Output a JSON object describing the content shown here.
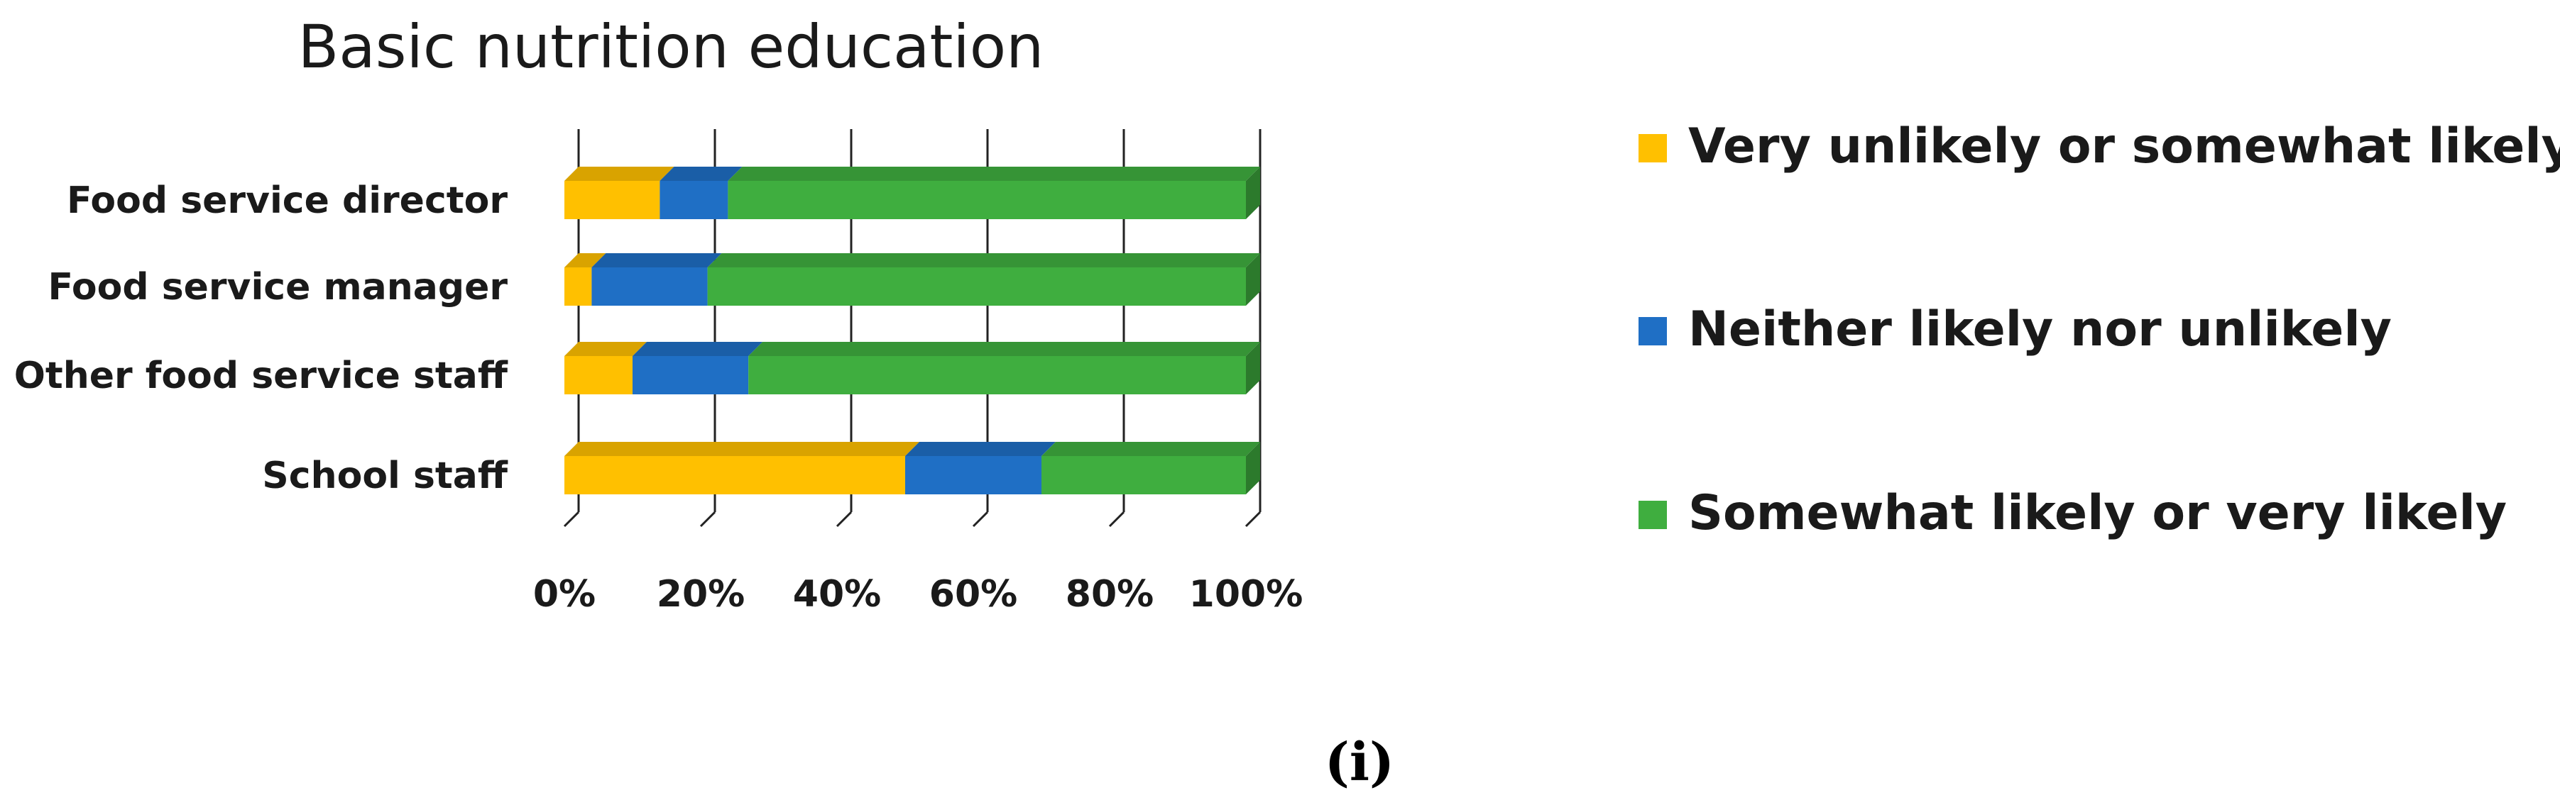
{
  "chart_data": {
    "type": "bar",
    "orientation": "horizontal",
    "stacked": true,
    "percent_stacked": true,
    "three_d": true,
    "title": "Basic nutrition education",
    "categories": [
      "Food service director",
      "Food service manager",
      "Other food service staff",
      "School staff"
    ],
    "series": [
      {
        "name": "Very unlikely or somewhat likely",
        "color": "#FFC000",
        "values": [
          14,
          4,
          10,
          50
        ]
      },
      {
        "name": "Neither likely nor unlikely",
        "color": "#1F6FC5",
        "values": [
          10,
          17,
          17,
          20
        ]
      },
      {
        "name": "Somewhat likely or very likely",
        "color": "#3FAE3F",
        "values": [
          76,
          79,
          73,
          30
        ]
      }
    ],
    "x_ticks": [
      "0%",
      "20%",
      "40%",
      "60%",
      "80%",
      "100%"
    ],
    "xlim": [
      0,
      100
    ],
    "grid": true,
    "legend_position": "right"
  },
  "caption": "(i)"
}
